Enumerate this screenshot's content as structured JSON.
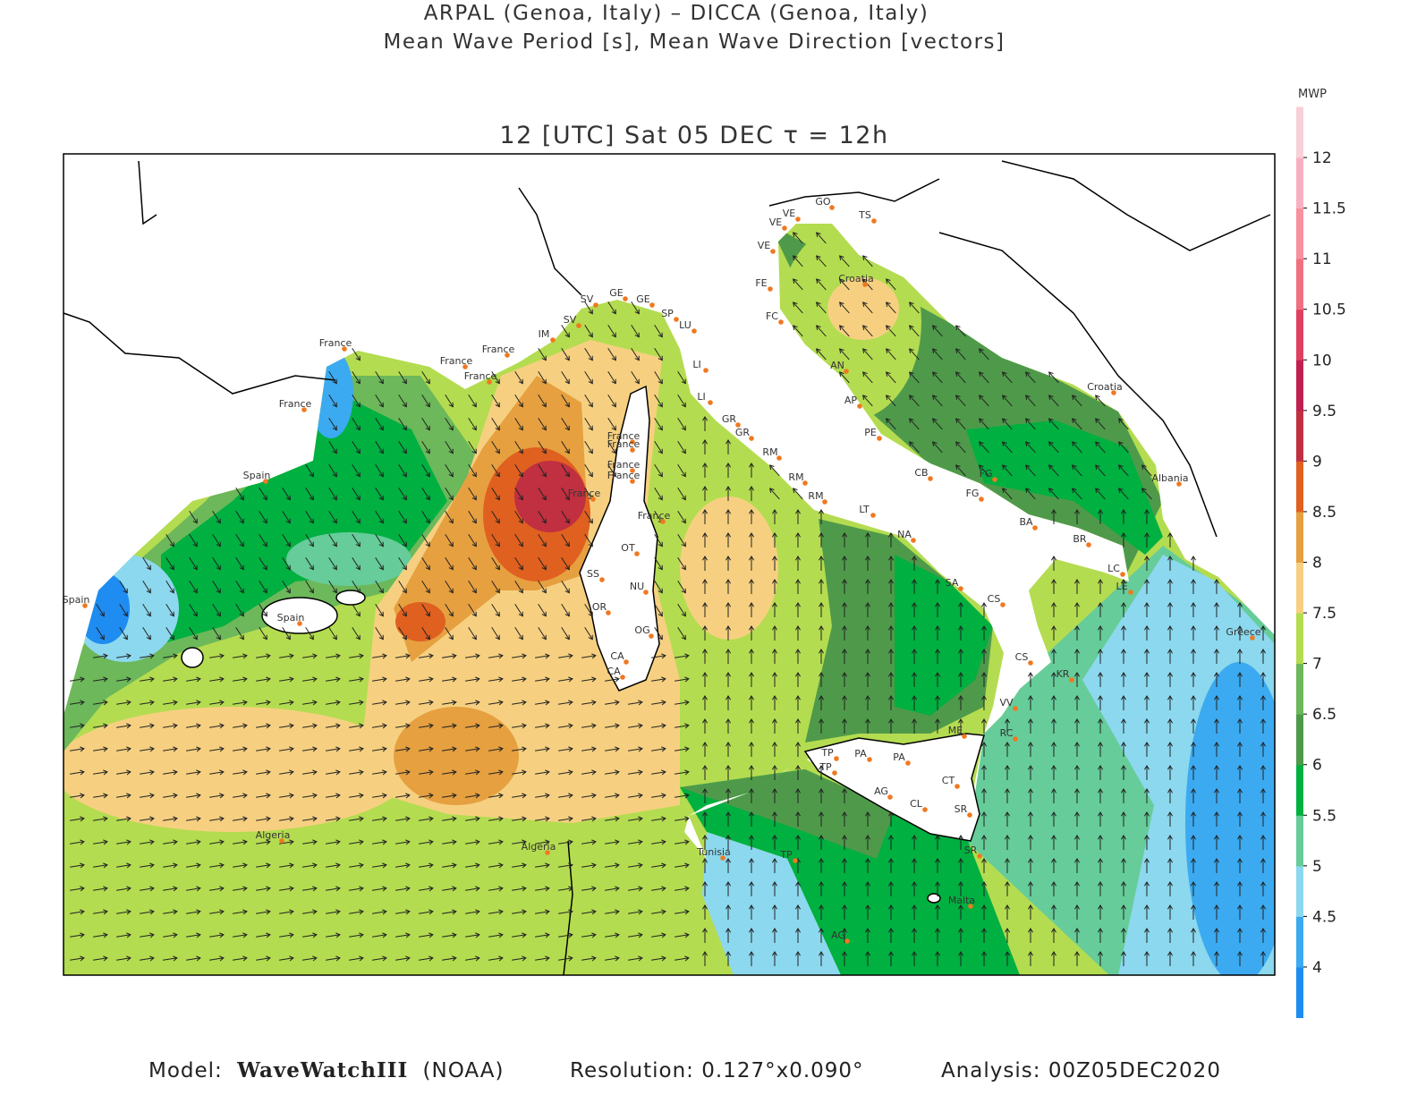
{
  "header": {
    "line1": "ARPAL (Genoa, Italy)  –  DICCA (Genoa, Italy)",
    "line2": "Mean Wave Period [s], Mean Wave Direction [vectors]",
    "time": "12 [UTC] Sat 05 DEC  τ = 12h"
  },
  "colorbar": {
    "label": "MWP",
    "lim": [
      3.5,
      12.5
    ],
    "ticks": [
      4,
      4.5,
      5,
      5.5,
      6,
      6.5,
      7,
      7.5,
      8,
      8.5,
      9,
      9.5,
      10,
      10.5,
      11,
      11.5,
      12
    ],
    "colors": [
      "#1e8cf0",
      "#3caaf0",
      "#8cd8ee",
      "#66cc99",
      "#00b040",
      "#4f9a4a",
      "#6cb85a",
      "#b4dc50",
      "#f6d080",
      "#e6a040",
      "#e06020",
      "#c03040",
      "#c02050",
      "#e04060",
      "#f07080",
      "#f890a0",
      "#f8b0c0",
      "#f8d0d8"
    ]
  },
  "map": {
    "labels": [
      "France",
      "France",
      "France",
      "France",
      "France",
      "IM",
      "SV",
      "GE",
      "GE",
      "SP",
      "LU",
      "SV",
      "LI",
      "LI",
      "GR",
      "GR",
      "RM",
      "RM",
      "RM",
      "LT",
      "NA",
      "SA",
      "CS",
      "CS",
      "VV",
      "RC",
      "ME",
      "CT",
      "SR",
      "SR",
      "CL",
      "AG",
      "PA",
      "PA",
      "TP",
      "TP",
      "TP",
      "Tunisia",
      "Malta",
      "AG",
      "Algeria",
      "Algeria",
      "Spain",
      "Spain",
      "Spain",
      "France",
      "France",
      "France",
      "France",
      "France",
      "France",
      "OT",
      "SS",
      "NU",
      "OR",
      "OG",
      "CA",
      "CA",
      "TS",
      "GO",
      "VE",
      "VE",
      "VE",
      "FE",
      "FC",
      "AN",
      "AP",
      "PE",
      "CB",
      "FG",
      "FG",
      "BA",
      "BR",
      "LC",
      "LE",
      "KR",
      "Croatia",
      "Croatia",
      "Albania",
      "Greece"
    ]
  },
  "footer": {
    "model_label": "Model:",
    "model_name": "WaveWatchIII",
    "model_org": "(NOAA)",
    "resolution": "Resolution: 0.127°x0.090°",
    "analysis": "Analysis: 00Z05DEC2020"
  }
}
